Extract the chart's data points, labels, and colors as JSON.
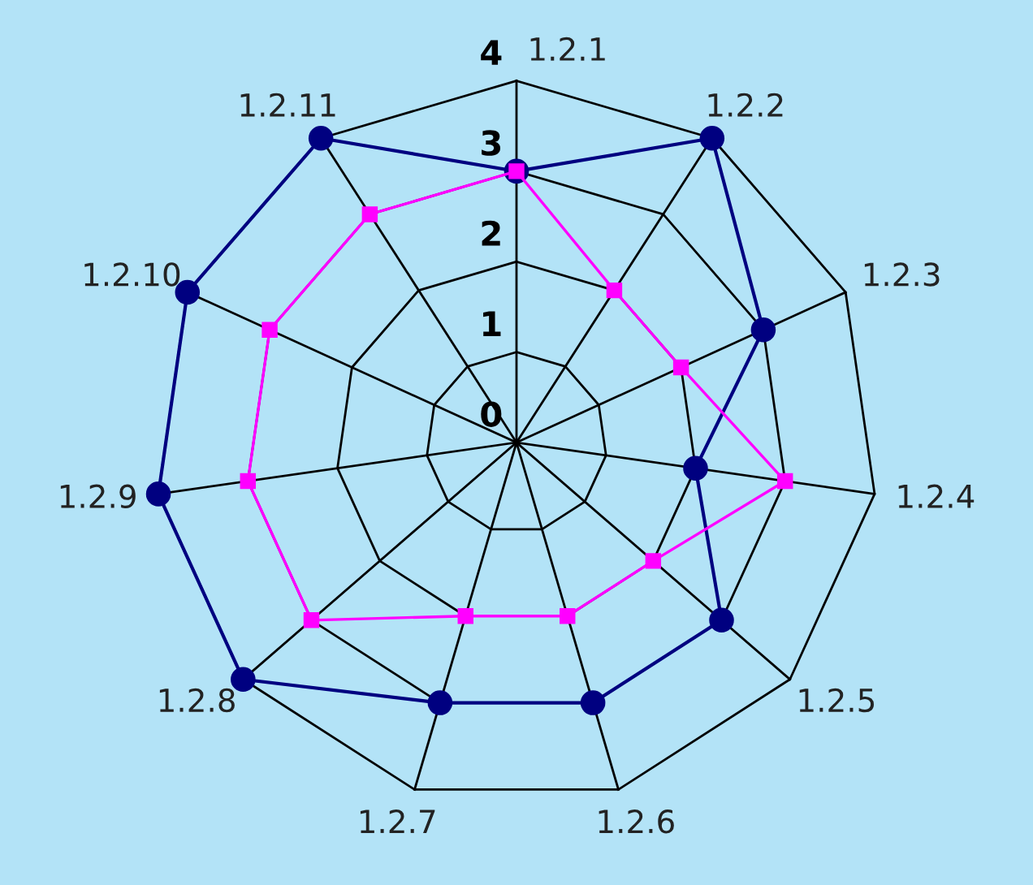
{
  "chart_data": {
    "type": "radar",
    "categories": [
      "1.2.1",
      "1.2.2",
      "1.2.3",
      "1.2.4",
      "1.2.5",
      "1.2.6",
      "1.2.7",
      "1.2.8",
      "1.2.9",
      "1.2.10",
      "1.2.11"
    ],
    "series": [
      {
        "color": "#000080",
        "marker": "circle",
        "values": [
          3,
          4,
          3,
          2,
          3,
          3,
          3,
          4,
          4,
          4,
          4
        ]
      },
      {
        "color": "#ff00ff",
        "marker": "square",
        "values": [
          3,
          2,
          2,
          3,
          2,
          2,
          2,
          3,
          3,
          3,
          3
        ]
      }
    ],
    "ylim": [
      0,
      4
    ],
    "yticks": [
      0,
      1,
      2,
      3,
      4
    ],
    "grid": true
  }
}
